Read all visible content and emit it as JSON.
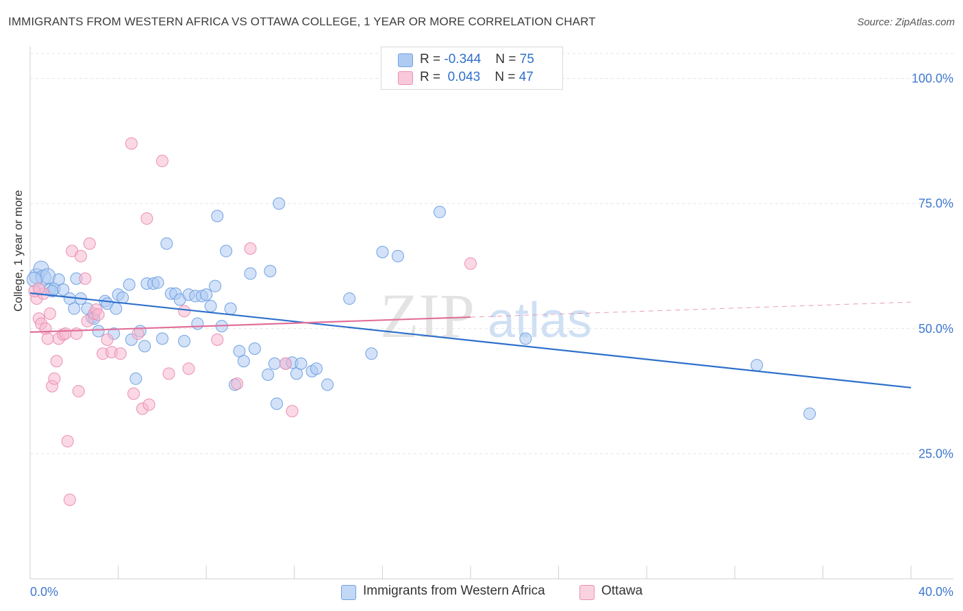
{
  "title": "IMMIGRANTS FROM WESTERN AFRICA VS OTTAWA COLLEGE, 1 YEAR OR MORE CORRELATION CHART",
  "source": "Source: ZipAtlas.com",
  "watermark": {
    "zip": "ZIP",
    "atlas": "atlas"
  },
  "legend_top": [
    {
      "r_label": "R =",
      "r_value": "-0.344",
      "n_label": "N =",
      "n_value": "75",
      "color": "#aecbf2"
    },
    {
      "r_label": "R =",
      "r_value": "0.043",
      "n_label": "N =",
      "n_value": "47",
      "color": "#f7b8cf"
    }
  ],
  "chart_data": {
    "type": "scatter",
    "xlabel": "",
    "ylabel": "College, 1 year or more",
    "xlim": [
      0,
      40
    ],
    "ylim": [
      0,
      105
    ],
    "x_tick_labels": [
      "0.0%",
      "40.0%"
    ],
    "y_ticks": [
      25,
      50,
      75,
      100
    ],
    "y_tick_labels": [
      "25.0%",
      "50.0%",
      "75.0%",
      "100.0%"
    ],
    "grid": true,
    "legend_position": "bottom",
    "series": [
      {
        "name": "Immigrants from Western Africa",
        "color": "#6fa1e3",
        "fill": "#aecbf2",
        "line_color": "#2d6fcb",
        "trend": {
          "x": [
            0,
            40
          ],
          "y": [
            57.1,
            38.2
          ]
        },
        "points": [
          [
            0.3,
            60.5
          ],
          [
            0.5,
            62.0
          ],
          [
            0.6,
            60.2
          ],
          [
            0.8,
            60.5
          ],
          [
            0.9,
            57.8
          ],
          [
            1.1,
            58.0
          ],
          [
            1.3,
            59.8
          ],
          [
            1.5,
            57.8
          ],
          [
            1.8,
            56.0
          ],
          [
            2.1,
            60.0
          ],
          [
            2.3,
            56.0
          ],
          [
            2.0,
            54.0
          ],
          [
            2.6,
            54.0
          ],
          [
            2.8,
            52.2
          ],
          [
            2.9,
            52.0
          ],
          [
            3.1,
            49.5
          ],
          [
            3.4,
            55.5
          ],
          [
            3.5,
            55.0
          ],
          [
            3.8,
            49.0
          ],
          [
            3.9,
            54.0
          ],
          [
            4.0,
            56.8
          ],
          [
            4.2,
            56.2
          ],
          [
            4.5,
            58.8
          ],
          [
            4.6,
            47.8
          ],
          [
            4.8,
            40.0
          ],
          [
            5.0,
            49.5
          ],
          [
            5.2,
            46.5
          ],
          [
            5.3,
            59.0
          ],
          [
            5.6,
            59.0
          ],
          [
            5.8,
            59.2
          ],
          [
            6.0,
            48.0
          ],
          [
            6.2,
            67.0
          ],
          [
            6.4,
            57.0
          ],
          [
            6.6,
            57.0
          ],
          [
            6.8,
            55.8
          ],
          [
            7.0,
            47.5
          ],
          [
            7.2,
            56.8
          ],
          [
            7.5,
            56.5
          ],
          [
            7.6,
            51.0
          ],
          [
            7.8,
            56.5
          ],
          [
            8.0,
            56.8
          ],
          [
            8.2,
            54.5
          ],
          [
            8.4,
            58.5
          ],
          [
            8.5,
            72.5
          ],
          [
            8.7,
            50.5
          ],
          [
            8.9,
            65.5
          ],
          [
            9.1,
            54.0
          ],
          [
            9.3,
            38.8
          ],
          [
            9.5,
            45.5
          ],
          [
            9.7,
            43.5
          ],
          [
            10.0,
            61.0
          ],
          [
            10.2,
            46.0
          ],
          [
            10.8,
            40.8
          ],
          [
            10.9,
            61.5
          ],
          [
            11.1,
            43.0
          ],
          [
            11.2,
            35.0
          ],
          [
            11.3,
            75.0
          ],
          [
            11.6,
            43.0
          ],
          [
            11.9,
            43.2
          ],
          [
            12.1,
            41.0
          ],
          [
            12.3,
            43.0
          ],
          [
            12.8,
            41.5
          ],
          [
            13.0,
            42.0
          ],
          [
            13.5,
            38.8
          ],
          [
            14.5,
            56.0
          ],
          [
            15.5,
            45.0
          ],
          [
            16.0,
            65.3
          ],
          [
            16.7,
            64.5
          ],
          [
            18.6,
            73.3
          ],
          [
            22.5,
            48.0
          ],
          [
            33.0,
            42.7
          ],
          [
            35.4,
            33.0
          ],
          [
            0.2,
            59.8
          ],
          [
            0.4,
            58.0
          ],
          [
            1.0,
            57.5
          ]
        ]
      },
      {
        "name": "Ottawa",
        "color": "#ea8fb1",
        "fill": "#f7b8cf",
        "line_color": "#e06f99",
        "trend": {
          "x": [
            0,
            20
          ],
          "y": [
            49.3,
            52.3
          ]
        },
        "trend_dashed": {
          "x": [
            20,
            40
          ],
          "y": [
            52.3,
            55.3
          ]
        },
        "points": [
          [
            0.3,
            56.0
          ],
          [
            0.4,
            52.0
          ],
          [
            0.5,
            51.0
          ],
          [
            0.6,
            57.0
          ],
          [
            0.7,
            50.0
          ],
          [
            0.8,
            48.0
          ],
          [
            0.9,
            53.0
          ],
          [
            1.0,
            38.5
          ],
          [
            1.1,
            40.0
          ],
          [
            1.2,
            43.5
          ],
          [
            1.3,
            48.0
          ],
          [
            1.5,
            48.8
          ],
          [
            1.6,
            49.0
          ],
          [
            1.7,
            27.5
          ],
          [
            1.8,
            15.8
          ],
          [
            1.9,
            65.5
          ],
          [
            2.1,
            49.0
          ],
          [
            2.2,
            37.5
          ],
          [
            2.3,
            64.5
          ],
          [
            2.5,
            60.0
          ],
          [
            2.6,
            51.5
          ],
          [
            2.7,
            67.0
          ],
          [
            2.9,
            53.0
          ],
          [
            3.0,
            53.8
          ],
          [
            3.1,
            52.8
          ],
          [
            3.3,
            45.0
          ],
          [
            3.5,
            47.8
          ],
          [
            3.7,
            45.3
          ],
          [
            4.1,
            45.0
          ],
          [
            4.6,
            87.0
          ],
          [
            4.7,
            37.0
          ],
          [
            4.9,
            49.0
          ],
          [
            5.1,
            34.0
          ],
          [
            5.3,
            72.0
          ],
          [
            5.4,
            34.8
          ],
          [
            6.0,
            83.5
          ],
          [
            6.3,
            41.0
          ],
          [
            7.0,
            53.5
          ],
          [
            7.2,
            42.0
          ],
          [
            8.5,
            47.8
          ],
          [
            9.4,
            39.0
          ],
          [
            10.0,
            66.0
          ],
          [
            11.6,
            43.0
          ],
          [
            11.9,
            33.5
          ],
          [
            20.0,
            63.0
          ],
          [
            0.2,
            57.5
          ],
          [
            0.4,
            58.0
          ]
        ]
      }
    ]
  }
}
